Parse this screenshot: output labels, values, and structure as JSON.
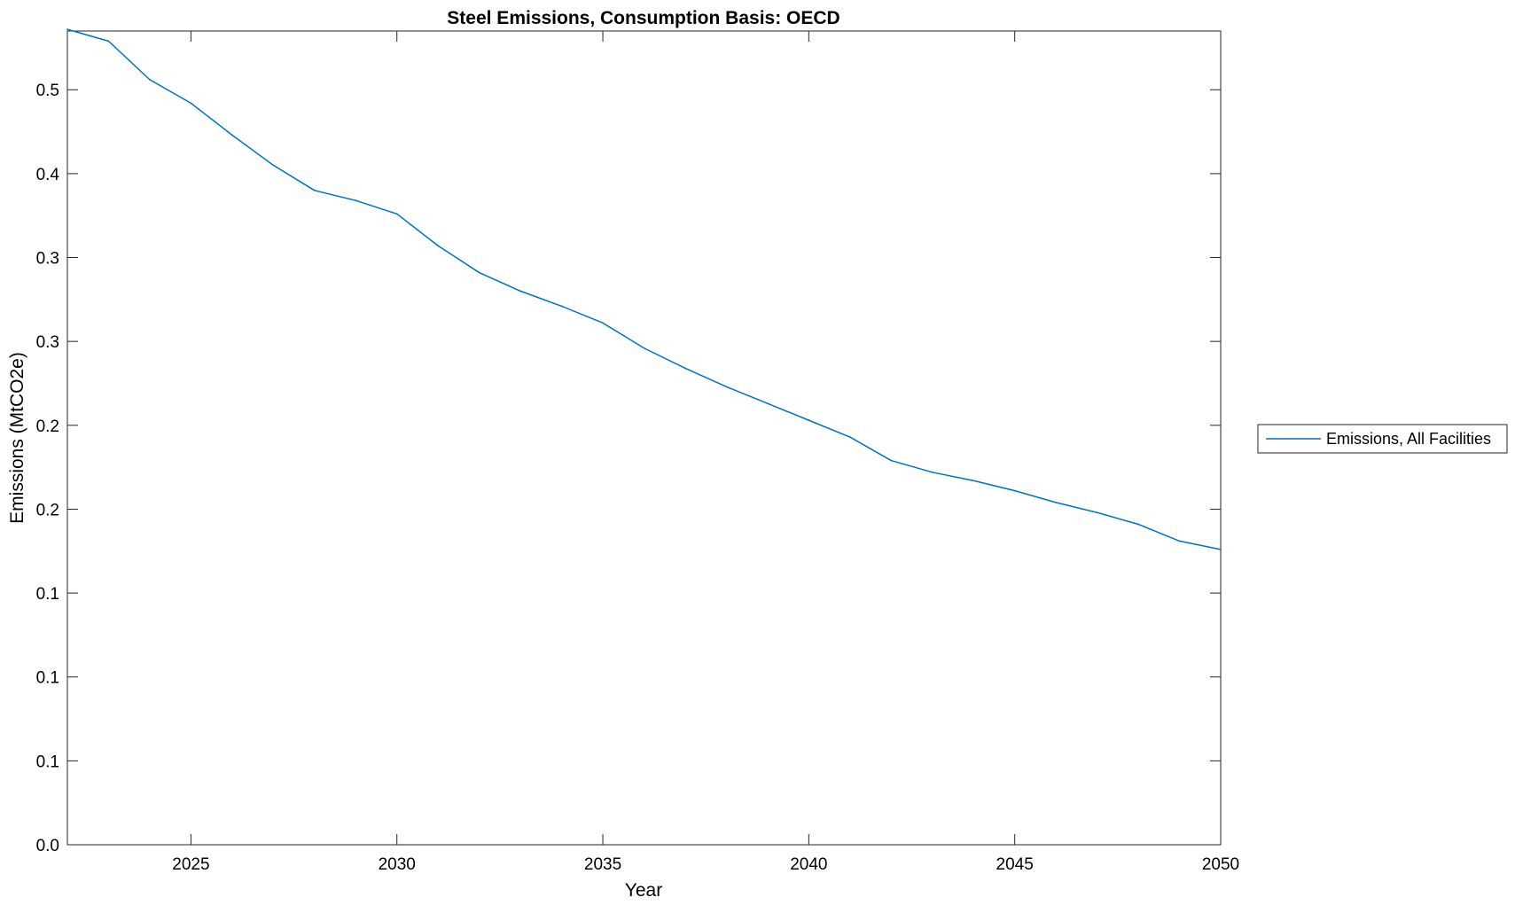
{
  "chart_data": {
    "type": "line",
    "title": "Steel Emissions, Consumption Basis: OECD",
    "xlabel": "Year",
    "ylabel": "Emissions (MtCO2e)",
    "xlim": [
      2022,
      2050
    ],
    "ylim": [
      0,
      0.485
    ],
    "x_ticks": [
      2025,
      2030,
      2035,
      2040,
      2045,
      2050
    ],
    "x_tick_labels": [
      "2025",
      "2030",
      "2035",
      "2040",
      "2045",
      "2050"
    ],
    "y_ticks": [
      0,
      0.05,
      0.1,
      0.15,
      0.2,
      0.25,
      0.3,
      0.35,
      0.4,
      0.45
    ],
    "y_tick_labels": [
      "0.0",
      "0.1",
      "0.1",
      "0.1",
      "0.2",
      "0.2",
      "0.3",
      "0.3",
      "0.4",
      "0.5"
    ],
    "grid": false,
    "legend_position": "outside-right",
    "series": [
      {
        "name": "Emissions, All Facilities",
        "color": "#0072BD",
        "x": [
          2022,
          2023,
          2024,
          2025,
          2026,
          2027,
          2028,
          2029,
          2030,
          2031,
          2032,
          2033,
          2034,
          2035,
          2036,
          2037,
          2038,
          2039,
          2040,
          2041,
          2042,
          2043,
          2044,
          2045,
          2046,
          2047,
          2048,
          2049,
          2050
        ],
        "y": [
          0.486,
          0.479,
          0.456,
          0.442,
          0.423,
          0.405,
          0.39,
          0.384,
          0.376,
          0.357,
          0.341,
          0.33,
          0.321,
          0.311,
          0.296,
          0.284,
          0.273,
          0.263,
          0.253,
          0.243,
          0.229,
          0.222,
          0.217,
          0.211,
          0.204,
          0.198,
          0.191,
          0.181,
          0.176
        ]
      }
    ]
  }
}
